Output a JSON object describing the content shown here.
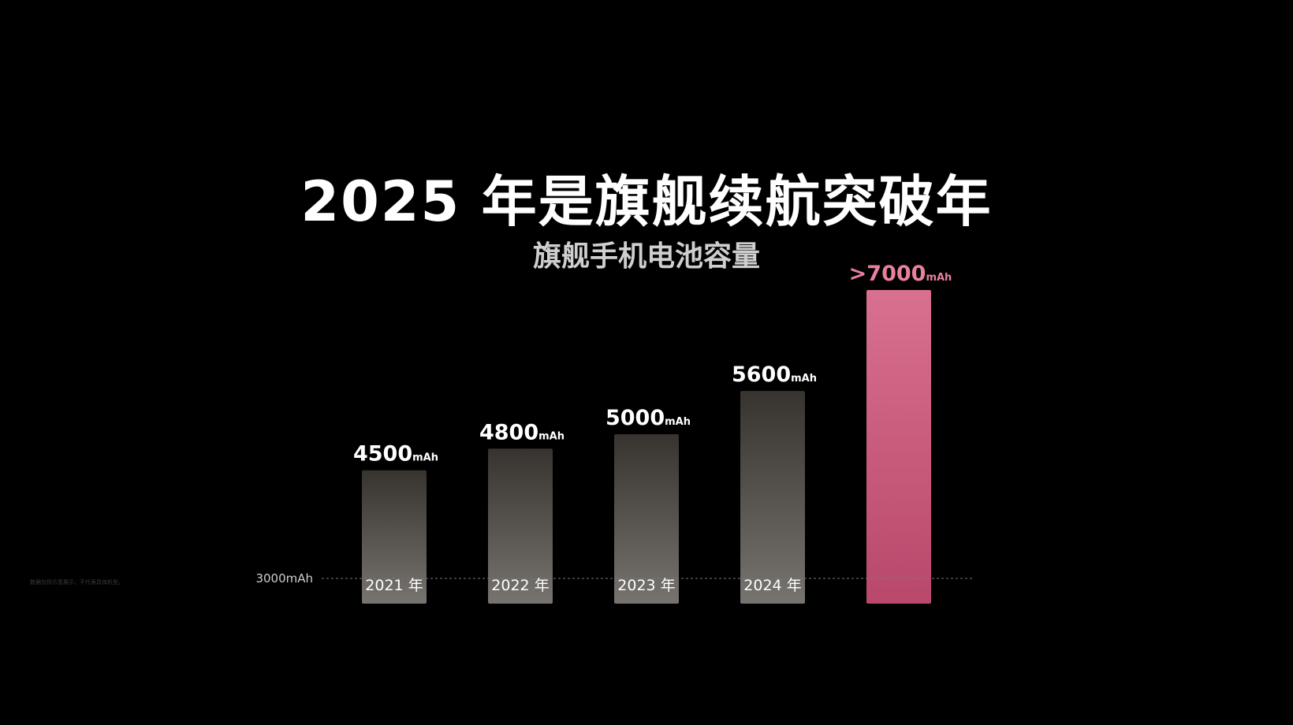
{
  "slide": {
    "title": "2025 年是旗舰续航突破年",
    "subtitle": "旗舰手机电池容量",
    "footnote": "数据仅供示意展示，不代表具体机型。"
  },
  "colors": {
    "background": "#000000",
    "bar_dark_top": "#37332f",
    "bar_dark_bottom": "#777470",
    "bar_highlight_top": "#d8708f",
    "bar_highlight_bottom": "#b9486b",
    "label_white": "#ffffff",
    "label_highlight": "#e8809e",
    "reference_line": "#777777"
  },
  "chart_data": {
    "type": "bar",
    "title": "2025 年是旗舰续航突破年",
    "subtitle": "旗舰手机电池容量",
    "categories": [
      "2021 年",
      "2022 年",
      "2023 年",
      "2024 年",
      ""
    ],
    "values": [
      4500,
      4800,
      5000,
      5600,
      7000
    ],
    "value_labels": [
      "4500",
      "4800",
      "5000",
      "5600",
      ">7000"
    ],
    "unit": "mAh",
    "highlight_index": 4,
    "reference_line": {
      "value": 3000,
      "label": "3000mAh"
    },
    "ylim": [
      2650,
      7200
    ],
    "grid": false,
    "legend": "none"
  }
}
